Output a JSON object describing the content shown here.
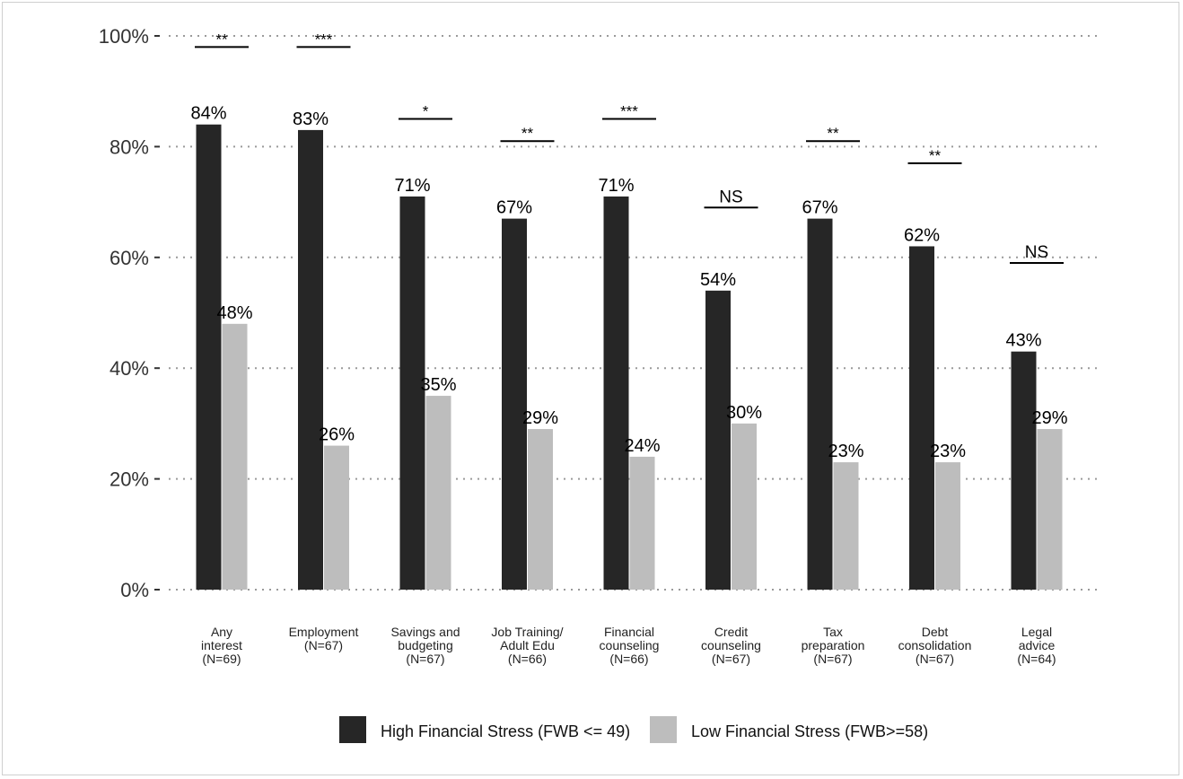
{
  "chart_data": {
    "type": "bar",
    "categories": [
      [
        "Any",
        "interest",
        "(N=69)"
      ],
      [
        "Employment",
        "(N=67)"
      ],
      [
        "Savings and",
        "budgeting",
        "(N=67)"
      ],
      [
        "Job Training/",
        "Adult Edu",
        "(N=66)"
      ],
      [
        "Financial",
        "counseling",
        "(N=66)"
      ],
      [
        "Credit",
        "counseling",
        "(N=67)"
      ],
      [
        "Tax",
        "preparation",
        "(N=67)"
      ],
      [
        "Debt",
        "consolidation",
        "(N=67)"
      ],
      [
        "Legal",
        "advice",
        "(N=64)"
      ]
    ],
    "series": [
      {
        "name": "High Financial Stress (FWB <= 49)",
        "color": "#262626",
        "values": [
          84,
          83,
          71,
          67,
          71,
          54,
          67,
          62,
          43
        ],
        "labels": [
          "84%",
          "83%",
          "71%",
          "67%",
          "71%",
          "54%",
          "67%",
          "62%",
          "43%"
        ]
      },
      {
        "name": "Low Financial Stress (FWB>=58)",
        "color": "#bdbdbd",
        "values": [
          48,
          26,
          35,
          29,
          24,
          30,
          23,
          23,
          29
        ],
        "labels": [
          "48%",
          "26%",
          "35%",
          "29%",
          "24%",
          "30%",
          "23%",
          "23%",
          "29%"
        ]
      }
    ],
    "significance": [
      {
        "label": "**",
        "level": 98
      },
      {
        "label": "***",
        "level": 98
      },
      {
        "label": "*",
        "level": 85
      },
      {
        "label": "**",
        "level": 81
      },
      {
        "label": "***",
        "level": 85
      },
      {
        "label": "NS",
        "level": 69
      },
      {
        "label": "**",
        "level": 81
      },
      {
        "label": "**",
        "level": 77
      },
      {
        "label": "NS",
        "level": 59
      }
    ],
    "yticks": [
      0,
      20,
      40,
      60,
      80,
      100
    ],
    "ytick_labels": [
      "0%",
      "20%",
      "40%",
      "60%",
      "80%",
      "100%"
    ],
    "ylim": [
      0,
      100
    ],
    "grid": "horizontal dotted",
    "legend_position": "bottom",
    "title": "",
    "xlabel": "",
    "ylabel": ""
  }
}
